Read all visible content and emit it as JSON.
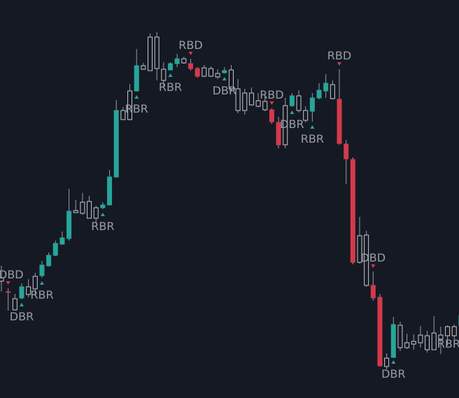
{
  "chart_data": {
    "type": "candlestick",
    "colors": {
      "background": "#151924",
      "bullish_strong": "#26a69a",
      "bearish_strong": "#d33a4a",
      "neutral_body": "#c8c9ce",
      "wick": "#9a9ca3",
      "label_text": "#9a9ca3",
      "up_marker": "#26a69a",
      "down_marker": "#d33a4a"
    },
    "price_range": [
      0,
      569
    ],
    "candles": [
      [
        397,
        402,
        380,
        417,
        "n"
      ],
      [
        417,
        417,
        412,
        444,
        "r"
      ],
      [
        443,
        427,
        420,
        444,
        "n"
      ],
      [
        426,
        410,
        405,
        428,
        "g"
      ],
      [
        421,
        410,
        399,
        425,
        "n"
      ],
      [
        413,
        395,
        390,
        421,
        "n"
      ],
      [
        394,
        379,
        373,
        397,
        "g"
      ],
      [
        380,
        365,
        361,
        381,
        "g"
      ],
      [
        365,
        348,
        344,
        366,
        "g"
      ],
      [
        349,
        340,
        331,
        350,
        "g"
      ],
      [
        341,
        302,
        270,
        344,
        "g"
      ],
      [
        301,
        304,
        286,
        304,
        "n"
      ],
      [
        305,
        289,
        276,
        307,
        "n"
      ],
      [
        288,
        312,
        280,
        312,
        "n"
      ],
      [
        312,
        297,
        294,
        318,
        "n"
      ],
      [
        297,
        293,
        289,
        299,
        "g"
      ],
      [
        293,
        253,
        243,
        293,
        "g"
      ],
      [
        253,
        158,
        143,
        254,
        "g"
      ],
      [
        171,
        158,
        153,
        171,
        "n"
      ],
      [
        171,
        130,
        120,
        172,
        "n"
      ],
      [
        130,
        94,
        70,
        131,
        "g"
      ],
      [
        94,
        99,
        90,
        100,
        "n"
      ],
      [
        101,
        53,
        48,
        101,
        "n"
      ],
      [
        53,
        98,
        46,
        115,
        "n"
      ],
      [
        99,
        115,
        89,
        124,
        "n"
      ],
      [
        100,
        91,
        89,
        100,
        "g"
      ],
      [
        91,
        84,
        77,
        96,
        "g"
      ],
      [
        84,
        90,
        81,
        91,
        "n"
      ],
      [
        91,
        98,
        84,
        101,
        "r"
      ],
      [
        98,
        109,
        96,
        111,
        "r"
      ],
      [
        109,
        97,
        93,
        110,
        "n"
      ],
      [
        98,
        109,
        95,
        110,
        "n"
      ],
      [
        105,
        110,
        99,
        113,
        "n"
      ],
      [
        104,
        101,
        96,
        105,
        "g"
      ],
      [
        100,
        127,
        93,
        131,
        "n"
      ],
      [
        127,
        158,
        113,
        162,
        "n"
      ],
      [
        158,
        133,
        127,
        164,
        "n"
      ],
      [
        133,
        150,
        125,
        151,
        "n"
      ],
      [
        152,
        144,
        133,
        153,
        "n"
      ],
      [
        145,
        157,
        137,
        159,
        "n"
      ],
      [
        157,
        174,
        155,
        177,
        "r"
      ],
      [
        175,
        207,
        167,
        212,
        "r"
      ],
      [
        207,
        151,
        140,
        212,
        "n"
      ],
      [
        151,
        137,
        133,
        153,
        "g"
      ],
      [
        137,
        158,
        129,
        161,
        "n"
      ],
      [
        158,
        172,
        152,
        175,
        "n"
      ],
      [
        159,
        140,
        133,
        174,
        "g"
      ],
      [
        140,
        129,
        119,
        142,
        "g"
      ],
      [
        130,
        119,
        106,
        140,
        "g"
      ],
      [
        141,
        121,
        115,
        142,
        "n"
      ],
      [
        142,
        205,
        99,
        207,
        "r"
      ],
      [
        206,
        227,
        200,
        263,
        "r"
      ],
      [
        228,
        375,
        225,
        378,
        "r"
      ],
      [
        375,
        337,
        310,
        377,
        "n"
      ],
      [
        336,
        408,
        330,
        410,
        "n"
      ],
      [
        408,
        426,
        388,
        430,
        "r"
      ],
      [
        425,
        523,
        420,
        524,
        "r"
      ],
      [
        524,
        512,
        505,
        528,
        "n"
      ],
      [
        511,
        464,
        453,
        510,
        "g"
      ],
      [
        497,
        465,
        460,
        502,
        "n"
      ],
      [
        490,
        497,
        477,
        499,
        "n"
      ],
      [
        492,
        488,
        478,
        500,
        "n"
      ],
      [
        490,
        479,
        466,
        497,
        "n"
      ],
      [
        480,
        500,
        473,
        504,
        "n"
      ],
      [
        500,
        476,
        452,
        500,
        "n"
      ],
      [
        485,
        479,
        467,
        506,
        "n"
      ],
      [
        480,
        467,
        465,
        494,
        "n"
      ],
      [
        467,
        480,
        464,
        485,
        "n"
      ],
      [
        466,
        451,
        427,
        467,
        "g"
      ],
      [
        451,
        466,
        444,
        472,
        "n"
      ]
    ],
    "markers": [
      {
        "bar": 1,
        "side": "above",
        "kind": "down",
        "label": "DBD"
      },
      {
        "bar": 3,
        "side": "below",
        "kind": "up",
        "label": "DBR"
      },
      {
        "bar": 6,
        "side": "below",
        "kind": "up",
        "label": "RBR"
      },
      {
        "bar": 15,
        "side": "below",
        "kind": "up",
        "label": "RBR"
      },
      {
        "bar": 20,
        "side": "below",
        "kind": "up",
        "label": "RBR"
      },
      {
        "bar": 25,
        "side": "below",
        "kind": "up",
        "label": "RBR"
      },
      {
        "bar": 28,
        "side": "above",
        "kind": "down",
        "label": "RBD"
      },
      {
        "bar": 33,
        "side": "below",
        "kind": "up",
        "label": "DBR"
      },
      {
        "bar": 40,
        "side": "above",
        "kind": "down",
        "label": "RBD"
      },
      {
        "bar": 43,
        "side": "below",
        "kind": "up",
        "label": "DBR"
      },
      {
        "bar": 46,
        "side": "below",
        "kind": "up",
        "label": "RBR"
      },
      {
        "bar": 50,
        "side": "above",
        "kind": "down",
        "label": "RBD"
      },
      {
        "bar": 55,
        "side": "above",
        "kind": "down",
        "label": "DBD"
      },
      {
        "bar": 58,
        "side": "below",
        "kind": "up",
        "label": "DBR"
      },
      {
        "bar": 68,
        "side": "below",
        "kind": "up",
        "label": "RBR"
      }
    ]
  }
}
